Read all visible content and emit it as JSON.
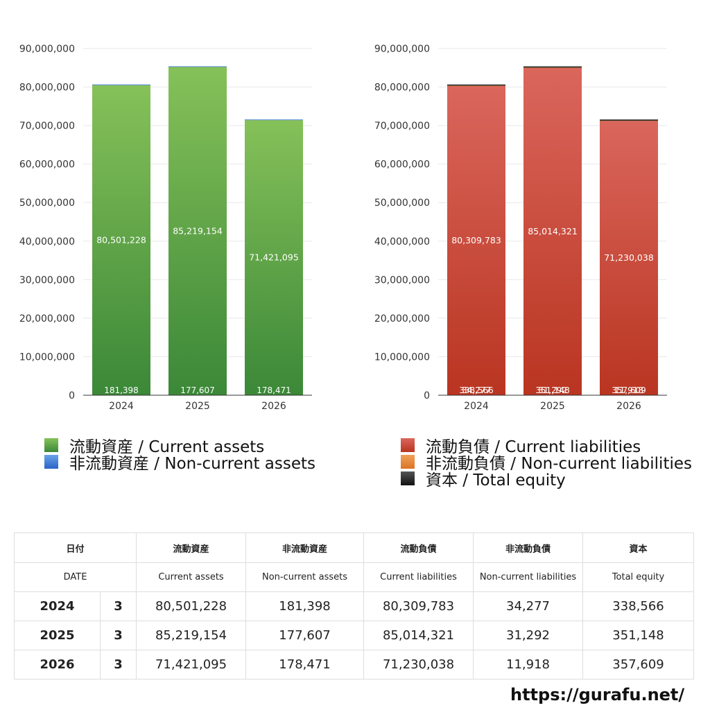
{
  "chart_data": [
    {
      "type": "bar",
      "stacked": true,
      "categories": [
        "2024",
        "2025",
        "2026"
      ],
      "ylim": [
        0,
        90000000
      ],
      "yticks": [
        "0",
        "10,000,000",
        "20,000,000",
        "30,000,000",
        "40,000,000",
        "50,000,000",
        "60,000,000",
        "70,000,000",
        "80,000,000",
        "90,000,000"
      ],
      "grid": true,
      "series": [
        {
          "name": "流動資産 / Current assets",
          "values": [
            80501228,
            85219154,
            71421095
          ],
          "labels": [
            "80,501,228",
            "85,219,154",
            "71,421,095"
          ],
          "color_top": "#86c159",
          "color_bottom": "#3b8838"
        },
        {
          "name": "非流動資産 / Non-current assets",
          "values": [
            181398,
            177607,
            178471
          ],
          "labels": [
            "181,398",
            "177,607",
            "178,471"
          ],
          "color_top": "#6aa4e8",
          "color_bottom": "#2a63c9"
        }
      ]
    },
    {
      "type": "bar",
      "stacked": true,
      "categories": [
        "2024",
        "2025",
        "2026"
      ],
      "ylim": [
        0,
        90000000
      ],
      "yticks": [
        "0",
        "10,000,000",
        "20,000,000",
        "30,000,000",
        "40,000,000",
        "50,000,000",
        "60,000,000",
        "70,000,000",
        "80,000,000",
        "90,000,000"
      ],
      "grid": true,
      "series": [
        {
          "name": "流動負債 / Current liabilities",
          "values": [
            80309783,
            85014321,
            71230038
          ],
          "labels": [
            "80,309,783",
            "85,014,321",
            "71,230,038"
          ],
          "color_top": "#da665c",
          "color_bottom": "#b93521"
        },
        {
          "name": "非流動負債 / Non-current liabilities",
          "values": [
            34277,
            31292,
            11918
          ],
          "labels": [
            "34,277",
            "31,292",
            "11,918"
          ],
          "color_top": "#f0a05a",
          "color_bottom": "#dc7526"
        },
        {
          "name": "資本 / Total equity",
          "values": [
            338566,
            351148,
            357609
          ],
          "labels": [
            "338,566",
            "351,148",
            "357,609"
          ],
          "color_top": "#555555",
          "color_bottom": "#111111"
        }
      ]
    }
  ],
  "legend_assets": [
    "流動資産 / Current assets",
    "非流動資産 / Non-current assets"
  ],
  "legend_liab": [
    "流動負債 / Current liabilities",
    "非流動負債 / Non-current liabilities",
    "資本 / Total equity"
  ],
  "table": {
    "header_jp": [
      "日付",
      "流動資産",
      "非流動資産",
      "流動負債",
      "非流動負債",
      "資本"
    ],
    "header_en": [
      "DATE",
      "Current assets",
      "Non-current assets",
      "Current liabilities",
      "Non-current liabilities",
      "Total equity"
    ],
    "rows": [
      {
        "year": "2024",
        "month": "3",
        "cells": [
          "80,501,228",
          "181,398",
          "80,309,783",
          "34,277",
          "338,566"
        ]
      },
      {
        "year": "2025",
        "month": "3",
        "cells": [
          "85,219,154",
          "177,607",
          "85,014,321",
          "31,292",
          "351,148"
        ]
      },
      {
        "year": "2026",
        "month": "3",
        "cells": [
          "71,421,095",
          "178,471",
          "71,230,038",
          "11,918",
          "357,609"
        ]
      }
    ]
  },
  "footer_site": "https://gurafu.net/"
}
